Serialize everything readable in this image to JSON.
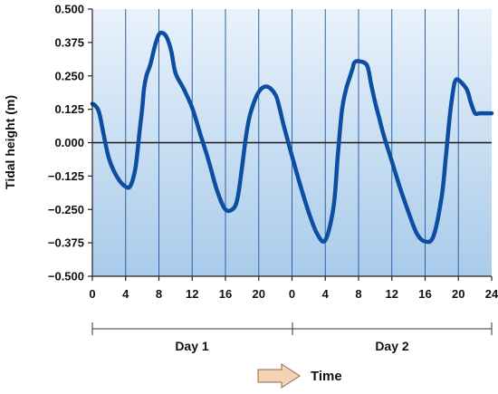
{
  "chart_data": {
    "type": "line",
    "ylabel": "Tidal height (m)",
    "xlabel": "Time",
    "ylim": [
      -0.5,
      0.5
    ],
    "xlim": [
      0,
      48
    ],
    "y_ticks": [
      "0.500",
      "0.375",
      "0.250",
      "0.125",
      "0.000",
      "−0.125",
      "−0.250",
      "−0.375",
      "−0.500"
    ],
    "x_ticks": [
      "0",
      "4",
      "8",
      "12",
      "16",
      "20",
      "0",
      "4",
      "8",
      "12",
      "16",
      "20",
      "24"
    ],
    "day_labels": [
      "Day 1",
      "Day 2"
    ],
    "grid": "vertical",
    "colors": {
      "line": "#0b4ea2",
      "grid": "#2f62a8",
      "zero_line": "#1a1a1a",
      "background_top": "#e9f2fb",
      "background_bottom": "#a9cbea",
      "arrow_fill": "#f2d3b2",
      "arrow_stroke": "#8a6a4a"
    },
    "series": [
      {
        "x": [
          0,
          0.3,
          0.8,
          1.3,
          2,
          3,
          4,
          4.6,
          5.2,
          5.7,
          6,
          6.2,
          6.5,
          7,
          7.5,
          8,
          8.5,
          9,
          9.5,
          10,
          11,
          12,
          13,
          14,
          15,
          16,
          17,
          17.5,
          18,
          18.5,
          19,
          20,
          21,
          22,
          22.5,
          23,
          24,
          25,
          26,
          27,
          28,
          29,
          29.5,
          30,
          30.5,
          31,
          31.3,
          31.5,
          32,
          33,
          33.5,
          34,
          34.5,
          35,
          36,
          37,
          38,
          39,
          40,
          41,
          42,
          42.5,
          43,
          43.4,
          43.6,
          44,
          45,
          45.5,
          46,
          46.5,
          47,
          48
        ],
        "values": [
          0.145,
          0.14,
          0.115,
          0.04,
          -0.06,
          -0.13,
          -0.165,
          -0.16,
          -0.09,
          0.05,
          0.13,
          0.2,
          0.25,
          0.295,
          0.36,
          0.405,
          0.41,
          0.39,
          0.34,
          0.26,
          0.2,
          0.13,
          0.03,
          -0.07,
          -0.18,
          -0.25,
          -0.245,
          -0.2,
          -0.09,
          0.03,
          0.11,
          0.19,
          0.21,
          0.18,
          0.13,
          0.065,
          -0.05,
          -0.16,
          -0.26,
          -0.34,
          -0.365,
          -0.24,
          -0.05,
          0.12,
          0.2,
          0.25,
          0.28,
          0.3,
          0.305,
          0.29,
          0.22,
          0.15,
          0.09,
          0.03,
          -0.07,
          -0.17,
          -0.26,
          -0.34,
          -0.37,
          -0.35,
          -0.2,
          -0.05,
          0.11,
          0.2,
          0.23,
          0.235,
          0.2,
          0.15,
          0.11,
          0.11,
          0.11,
          0.11
        ]
      }
    ]
  }
}
